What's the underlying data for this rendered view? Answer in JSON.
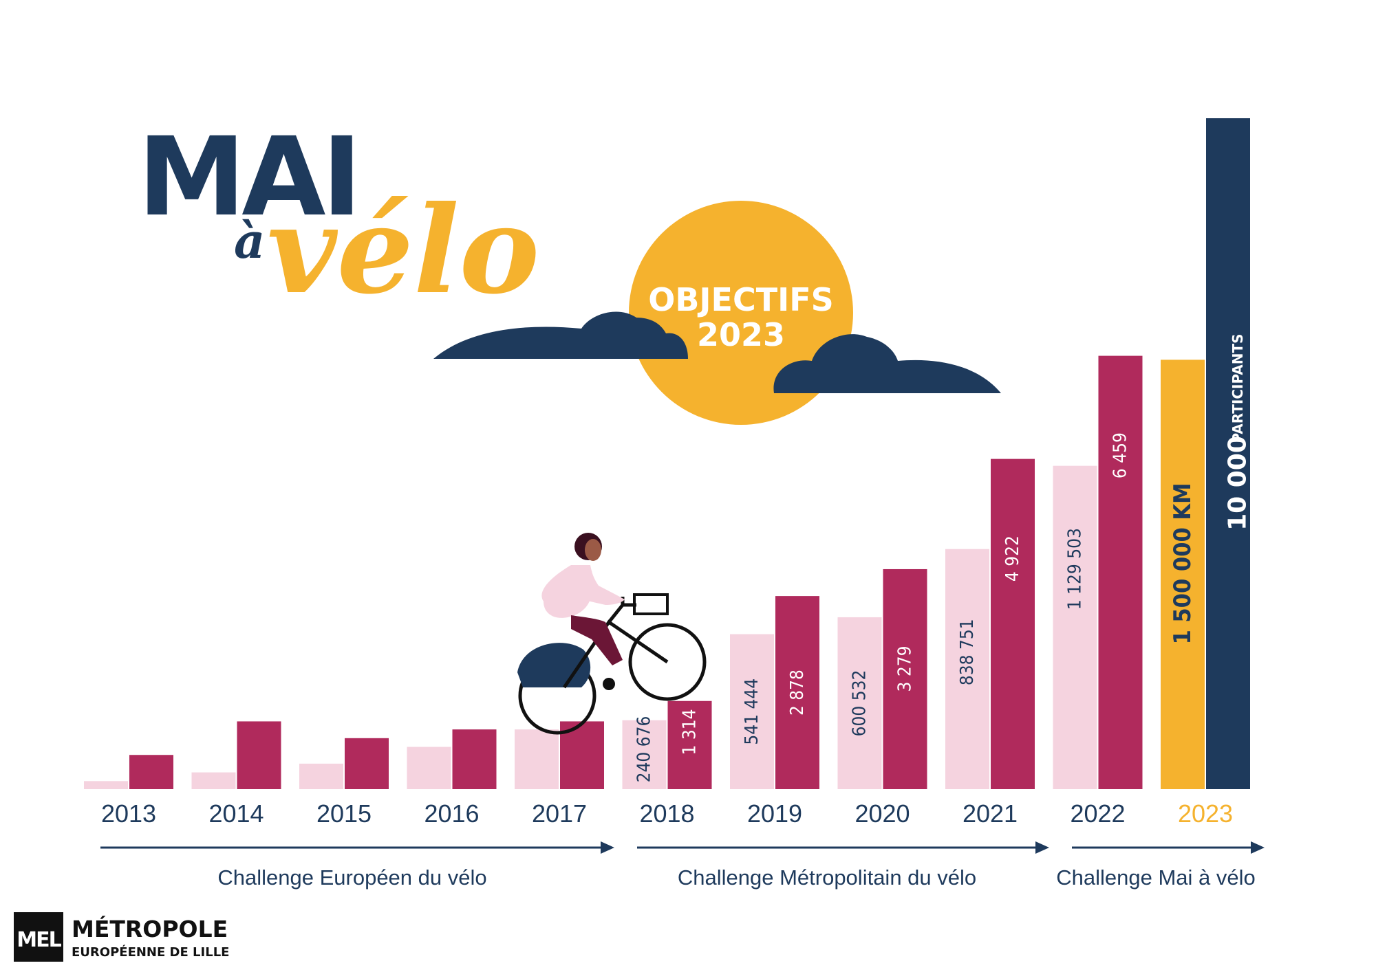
{
  "colors": {
    "navy": "#1e3a5c",
    "yellow": "#f5b22e",
    "pink_light": "#f5d3df",
    "magenta": "#b02a5c",
    "white": "#ffffff",
    "black": "#111111"
  },
  "title": {
    "mai": "MAI",
    "a": "à",
    "velo": "vélo"
  },
  "objectives": {
    "line1": "OBJECTIFS",
    "line2": "2023"
  },
  "logo": {
    "mark": "MEL",
    "line1": "MÉTROPOLE",
    "line2": "EUROPÉENNE DE LILLE"
  },
  "chart_data": {
    "type": "bar",
    "categories": [
      "2013",
      "2014",
      "2015",
      "2016",
      "2017",
      "2018",
      "2019",
      "2020",
      "2021",
      "2022",
      "2023"
    ],
    "series": [
      {
        "values": [
          null,
          null,
          null,
          null,
          null,
          240676,
          541444,
          600532,
          838751,
          1129503,
          1500000
        ],
        "labels": [
          "",
          "",
          "",
          "",
          "",
          "240 676",
          "541 444",
          "600 532",
          "838 751",
          "1 129 503",
          "1 500 000 KM"
        ]
      },
      {
        "values": [
          null,
          null,
          null,
          null,
          null,
          1314,
          2878,
          3279,
          4922,
          6459,
          10000
        ],
        "labels": [
          "",
          "",
          "",
          "",
          "",
          "1 314",
          "2 878",
          "3 279",
          "4 922",
          "6 459",
          "10 000"
        ],
        "unit_label": "PARTICIPANTS"
      }
    ],
    "unlabeled_bar_fractions": {
      "note_free": true,
      "series1": [
        0.012,
        0.025,
        0.038,
        0.063,
        0.089
      ],
      "series2": [
        0.051,
        0.101,
        0.076,
        0.089,
        0.101
      ]
    },
    "highlight_category": "2023",
    "phases": [
      {
        "label": "Challenge Européen du vélo",
        "from": "2013",
        "to": "2017"
      },
      {
        "label": "Challenge Métropolitain du vélo",
        "from": "2018",
        "to": "2021"
      },
      {
        "label": "Challenge Mai à vélo",
        "from": "2022",
        "to": "2023"
      }
    ],
    "grid": false,
    "legend": "none"
  }
}
